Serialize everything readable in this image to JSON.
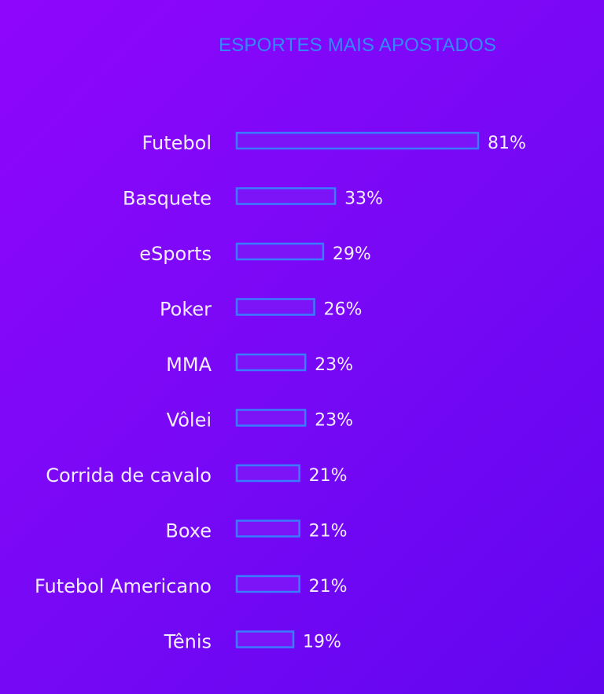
{
  "chart_data": {
    "type": "bar",
    "orientation": "horizontal",
    "title": "ESPORTES MAIS APOSTADOS",
    "categories": [
      "Futebol",
      "Basquete",
      "eSports",
      "Poker",
      "MMA",
      "Vôlei",
      "Corrida de cavalo",
      "Boxe",
      "Futebol Americano",
      "Tênis"
    ],
    "values": [
      81,
      33,
      29,
      26,
      23,
      23,
      21,
      21,
      21,
      19
    ],
    "value_labels": [
      "81%",
      "33%",
      "29%",
      "26%",
      "23%",
      "23%",
      "21%",
      "21%",
      "21%",
      "19%"
    ],
    "unit": "%",
    "xlim": [
      0,
      81
    ],
    "grid": false,
    "legend": "none",
    "colors": {
      "title": "#2f8bff",
      "bar_outline": "#3a7cff",
      "bar_fill": "#7d14f8",
      "text": "#f4ecff",
      "background_start": "#8f06fc",
      "background_end": "#6206f0"
    }
  }
}
